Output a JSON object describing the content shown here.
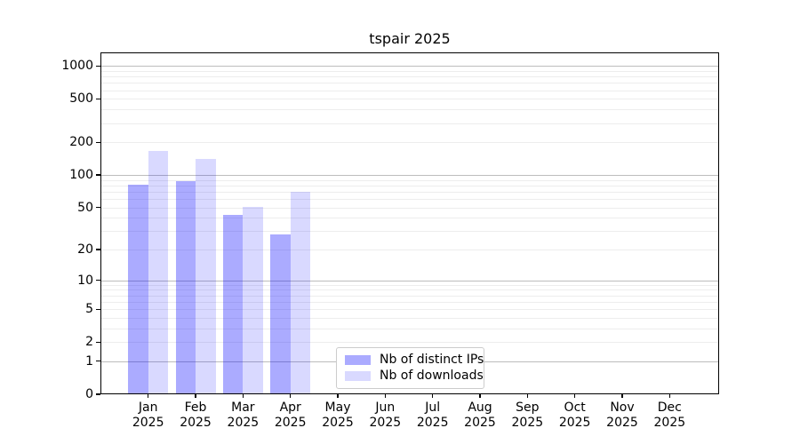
{
  "chart_data": {
    "type": "bar",
    "title": "tspair 2025",
    "categories": [
      "Jan 2025",
      "Feb 2025",
      "Mar 2025",
      "Apr 2025",
      "May 2025",
      "Jun 2025",
      "Jul 2025",
      "Aug 2025",
      "Sep 2025",
      "Oct 2025",
      "Nov 2025",
      "Dec 2025"
    ],
    "series": [
      {
        "name": "Nb of distinct IPs",
        "color": "#0000ff54",
        "values": [
          82,
          87,
          43,
          28,
          0,
          0,
          0,
          0,
          0,
          0,
          0,
          0
        ]
      },
      {
        "name": "Nb of downloads",
        "color": "#0000ff26",
        "values": [
          165,
          140,
          51,
          70,
          0,
          0,
          0,
          0,
          0,
          0,
          0,
          0
        ]
      }
    ],
    "yscale": "log1p",
    "ylim": [
      0,
      1332
    ],
    "yticks": [
      0,
      1,
      2,
      5,
      10,
      20,
      50,
      100,
      200,
      500,
      1000
    ],
    "grid": {
      "major": [
        1,
        10,
        100,
        1000
      ],
      "minor": [
        2,
        3,
        4,
        5,
        6,
        7,
        8,
        9,
        20,
        30,
        40,
        50,
        60,
        70,
        80,
        90,
        200,
        300,
        400,
        500,
        600,
        700,
        800,
        900
      ]
    },
    "legend_position": "lower center",
    "colors": {
      "major_grid": "#bdbdbd",
      "minor_grid": "#ededed",
      "spine": "#000000",
      "legend_border": "#cccccc"
    }
  }
}
